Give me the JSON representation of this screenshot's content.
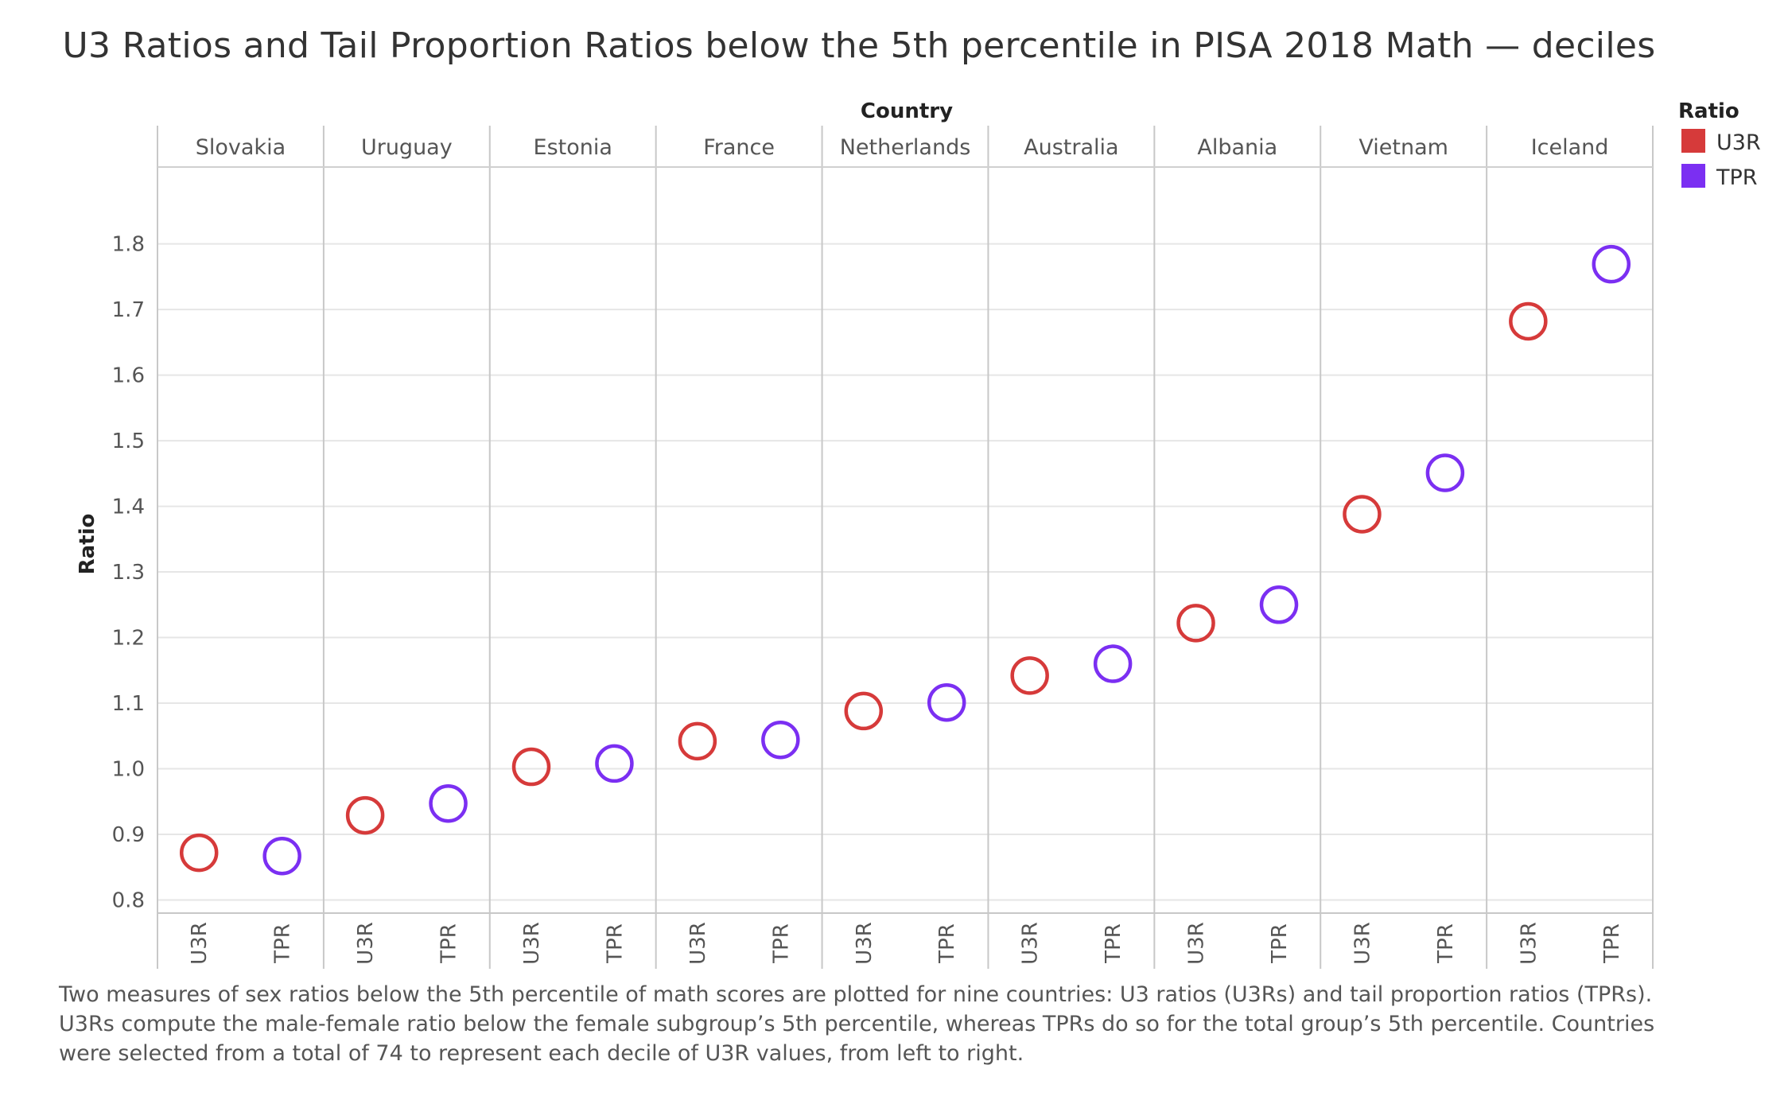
{
  "chart_data": {
    "type": "scatter",
    "title": "U3 Ratios and Tail Proportion Ratios below the 5th percentile in PISA 2018 Math — deciles",
    "column_header": "Country",
    "ylabel": "Ratio",
    "ylim": [
      0.78,
      1.905
    ],
    "yticks": [
      0.8,
      0.9,
      1.0,
      1.1,
      1.2,
      1.3,
      1.4,
      1.5,
      1.6,
      1.7,
      1.8
    ],
    "ytick_labels": [
      "0.8",
      "0.9",
      "1.0",
      "1.1",
      "1.2",
      "1.3",
      "1.4",
      "1.5",
      "1.6",
      "1.7",
      "1.8"
    ],
    "countries": [
      "Slovakia",
      "Uruguay",
      "Estonia",
      "France",
      "Netherlands",
      "Australia",
      "Albania",
      "Vietnam",
      "Iceland"
    ],
    "measures": [
      "U3R",
      "TPR"
    ],
    "legend_title": "Ratio",
    "legend_position": "top-right",
    "grid": true,
    "series": [
      {
        "name": "U3R",
        "color": "#d63a3a",
        "values": [
          0.872,
          0.929,
          1.003,
          1.042,
          1.088,
          1.142,
          1.222,
          1.388,
          1.682
        ]
      },
      {
        "name": "TPR",
        "color": "#7b2ff2",
        "values": [
          0.867,
          0.947,
          1.008,
          1.044,
          1.101,
          1.16,
          1.25,
          1.451,
          1.769
        ]
      }
    ]
  },
  "caption": "Two measures of sex ratios below the 5th percentile of math scores are plotted for nine countries: U3 ratios (U3Rs) and tail proportion ratios (TPRs). U3Rs compute the male-female ratio below the female subgroup’s 5th percentile, whereas TPRs do so for the total group’s 5th percentile. Countries were selected from a total of 74 to represent each decile of U3R values, from left to right."
}
